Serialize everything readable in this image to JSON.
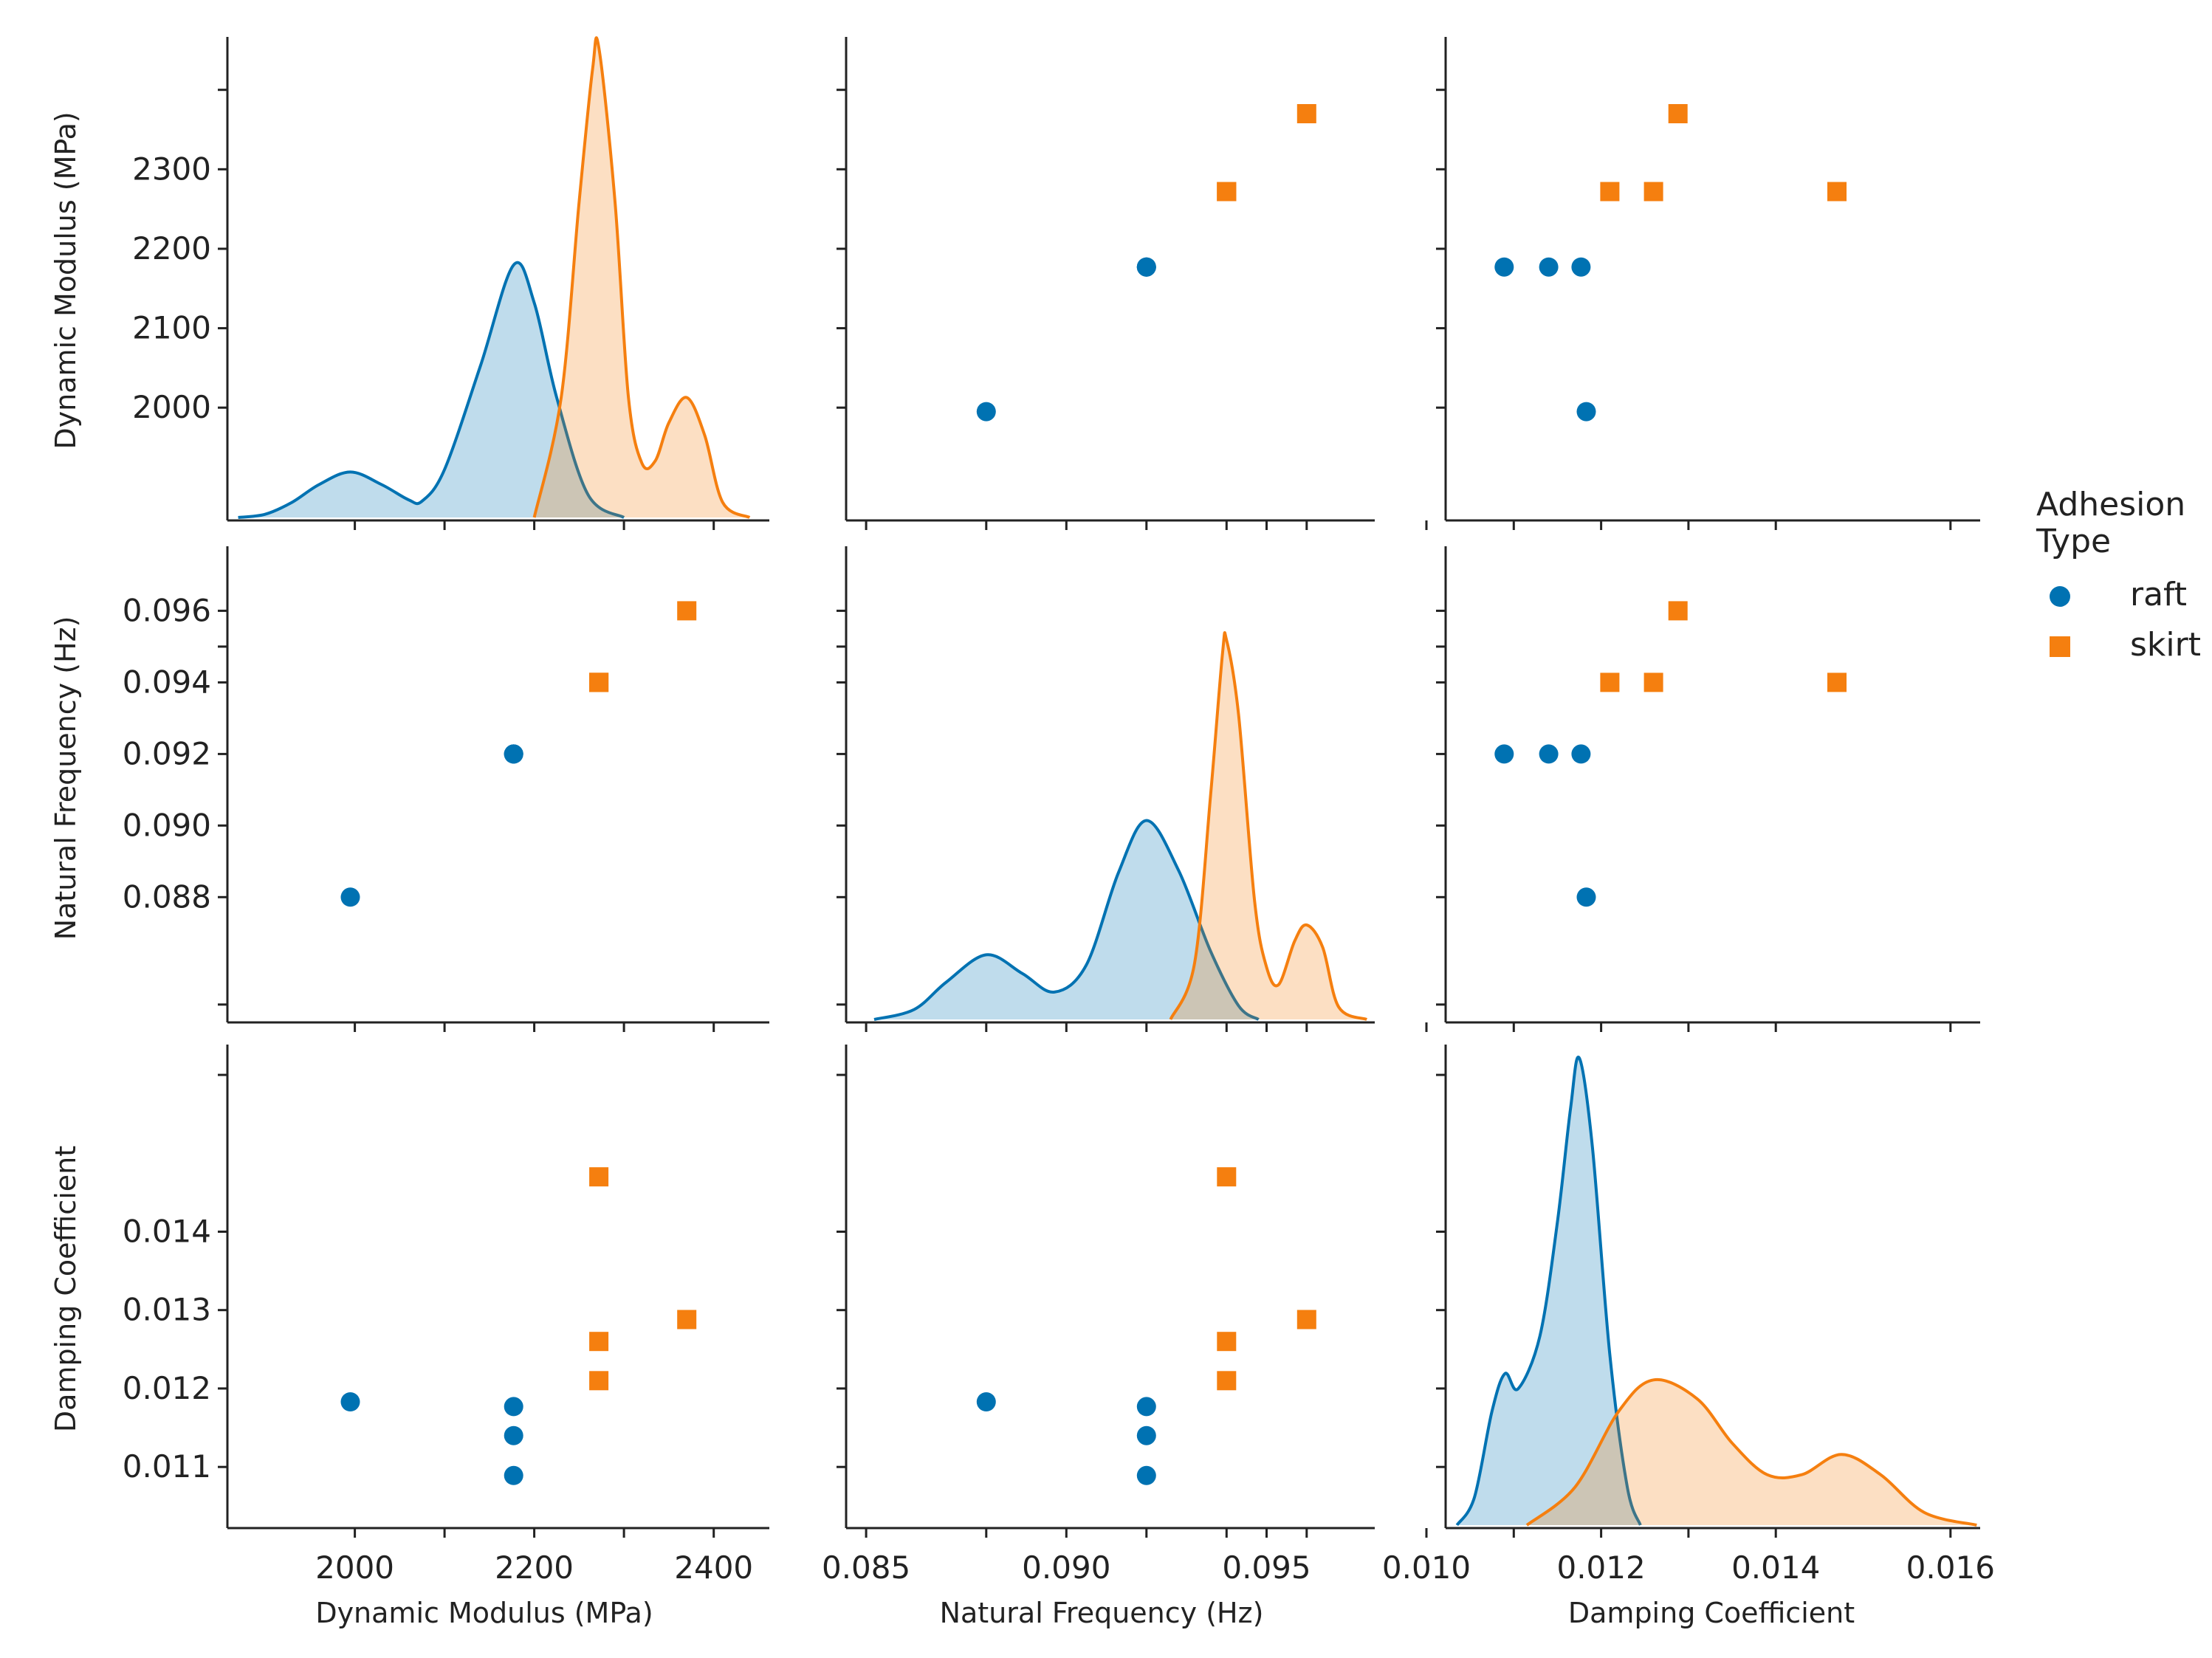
{
  "chart_data": {
    "type": "pairplot",
    "variables": [
      "Dynamic Modulus (MPa)",
      "Natural Frequency (Hz)",
      "Damping Coefficient"
    ],
    "hue_title_lines": [
      "Adhesion",
      "Type"
    ],
    "groups": [
      {
        "name": "raft",
        "color": "#0072b2",
        "marker": "circle"
      },
      {
        "name": "skirt",
        "color": "#f57f0f",
        "marker": "square"
      }
    ],
    "points": {
      "raft": [
        [
          1995,
          0.088,
          0.01183
        ],
        [
          2177,
          0.092,
          0.01177
        ],
        [
          2177,
          0.092,
          0.0114
        ],
        [
          2177,
          0.092,
          0.01089
        ]
      ],
      "skirt": [
        [
          2272,
          0.094,
          0.0121
        ],
        [
          2272,
          0.094,
          0.0126
        ],
        [
          2272,
          0.094,
          0.0147
        ],
        [
          2370,
          0.096,
          0.01288
        ]
      ]
    },
    "axes": [
      {
        "range": [
          1858,
          2462
        ],
        "ticks": [
          2000,
          2100,
          2200,
          2300,
          2400
        ],
        "x_tick_labels": [
          "2000",
          "2200",
          "2400"
        ],
        "y_tick_labels": [
          "2000",
          "2100",
          "2200",
          "2300"
        ]
      },
      {
        "range": [
          0.0845,
          0.0977
        ],
        "ticks": [
          0.085,
          0.088,
          0.09,
          0.092,
          0.094,
          0.095,
          0.096
        ],
        "x_tick_labels": [
          "0.085",
          "0.090",
          "0.095"
        ],
        "y_tick_labels": [
          "0.088",
          "0.090",
          "0.092",
          "0.094",
          "0.096"
        ]
      },
      {
        "range": [
          0.01022,
          0.01634
        ],
        "ticks": [
          0.01,
          0.011,
          0.012,
          0.013,
          0.014,
          0.016
        ],
        "x_tick_labels": [
          "0.010",
          "0.012",
          "0.014",
          "0.016"
        ],
        "y_tick_labels": [
          "0.011",
          "0.012",
          "0.013",
          "0.014"
        ]
      }
    ],
    "kde": {
      "0": {
        "raft": {
          "x": [
            1870,
            1900,
            1930,
            1960,
            1995,
            2030,
            2060,
            2075,
            2100,
            2140,
            2177,
            2200,
            2225,
            2260,
            2300
          ],
          "y": [
            0,
            2.5,
            12,
            26,
            36,
            26,
            14,
            13,
            38,
            120,
            200,
            170,
            95,
            18,
            0
          ]
        },
        "skirt": {
          "x": [
            2200,
            2230,
            2250,
            2265,
            2272,
            2290,
            2305,
            2320,
            2335,
            2350,
            2370,
            2390,
            2410,
            2440
          ],
          "y": [
            0,
            95,
            250,
            355,
            372,
            250,
            95,
            43,
            45,
            75,
            95,
            65,
            12,
            0
          ]
        }
      },
      "1": {
        "raft": {
          "x": [
            0.0852,
            0.0862,
            0.087,
            0.088,
            0.0889,
            0.0897,
            0.0905,
            0.0913,
            0.092,
            0.0928,
            0.0936,
            0.0943,
            0.0948
          ],
          "y": [
            0,
            8,
            30,
            52,
            37,
            22,
            44,
            118,
            160,
            120,
            55,
            11,
            0
          ]
        },
        "skirt": {
          "x": [
            0.0926,
            0.0932,
            0.0936,
            0.0939,
            0.094,
            0.0943,
            0.0947,
            0.095,
            0.0953,
            0.0957,
            0.096,
            0.0964,
            0.0968,
            0.0975
          ],
          "y": [
            0,
            45,
            180,
            295,
            305,
            245,
            95,
            42,
            28,
            63,
            76,
            58,
            10,
            0
          ]
        }
      },
      "2": {
        "raft": {
          "x": [
            0.01035,
            0.01055,
            0.01075,
            0.0109,
            0.01105,
            0.0113,
            0.0115,
            0.01165,
            0.01175,
            0.0119,
            0.0121,
            0.0123,
            0.01245
          ],
          "y": [
            0,
            22,
            90,
            120,
            108,
            150,
            240,
            330,
            370,
            300,
            135,
            30,
            0
          ]
        },
        "skirt": {
          "x": [
            0.01115,
            0.0117,
            0.0122,
            0.0126,
            0.0131,
            0.0135,
            0.0139,
            0.0143,
            0.01475,
            0.0152,
            0.0157,
            0.0163
          ],
          "y": [
            0,
            30,
            90,
            115,
            100,
            65,
            40,
            40,
            56,
            40,
            10,
            0
          ]
        }
      }
    }
  },
  "legend": {
    "title": "Adhesion Type",
    "items": [
      {
        "label": "raft",
        "color": "#0072b2"
      },
      {
        "label": "skirt",
        "color": "#f57f0f"
      }
    ]
  }
}
